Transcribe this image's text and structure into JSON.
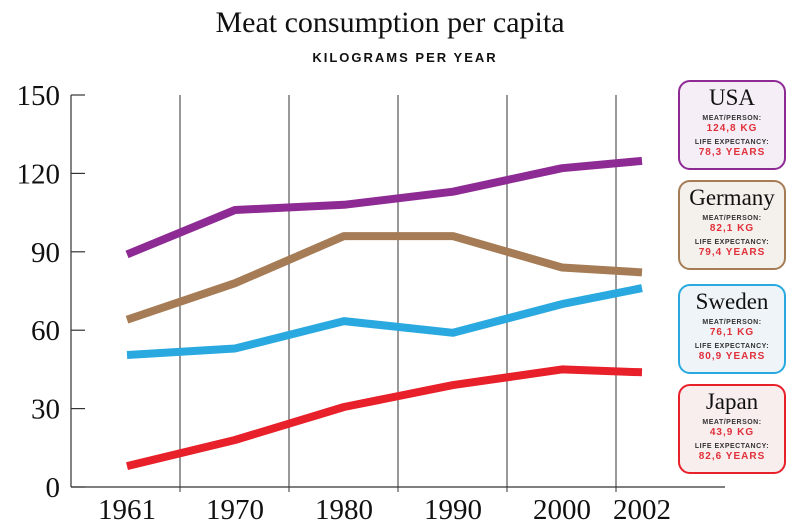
{
  "chart_data": {
    "type": "line",
    "title": "Meat consumption per capita",
    "subtitle": "KILOGRAMS PER YEAR",
    "categories": [
      "1961",
      "1970",
      "1980",
      "1990",
      "2000",
      "2002"
    ],
    "ylim": [
      0,
      150
    ],
    "yticks": [
      "0",
      "30",
      "60",
      "90",
      "120",
      "150"
    ],
    "grid": "vertical lines between categories",
    "series": [
      {
        "name": "USA",
        "color": "#8e2a94",
        "bg": "#f6eef6",
        "values": [
          89,
          106,
          108,
          113,
          122,
          124.8
        ],
        "meat_label": "MEAT/PERSON:",
        "meat": "124,8 KG",
        "life_label": "LIFE EXPECTANCY:",
        "life": "78,3 YEARS"
      },
      {
        "name": "Germany",
        "color": "#a57c55",
        "bg": "#f4f0ec",
        "values": [
          64,
          78,
          96,
          96,
          84,
          82.1
        ],
        "meat_label": "MEAT/PERSON:",
        "meat": "82,1 KG",
        "life_label": "LIFE EXPECTANCY:",
        "life": "79,4 YEARS"
      },
      {
        "name": "Sweden",
        "color": "#2aa9e0",
        "bg": "#eef4f8",
        "values": [
          50.5,
          53,
          63.5,
          59,
          70,
          76.1
        ],
        "meat_label": "MEAT/PERSON:",
        "meat": "76,1 KG",
        "life_label": "LIFE EXPECTANCY:",
        "life": "80,9 YEARS"
      },
      {
        "name": "Japan",
        "color": "#e8202a",
        "bg": "#f9eeee",
        "values": [
          8,
          18,
          30.6,
          39,
          45,
          43.9
        ],
        "meat_label": "MEAT/PERSON:",
        "meat": "43,9 KG",
        "life_label": "LIFE EXPECTANCY:",
        "life": "82,6 YEARS"
      }
    ],
    "legend": "right, boxed per series"
  }
}
